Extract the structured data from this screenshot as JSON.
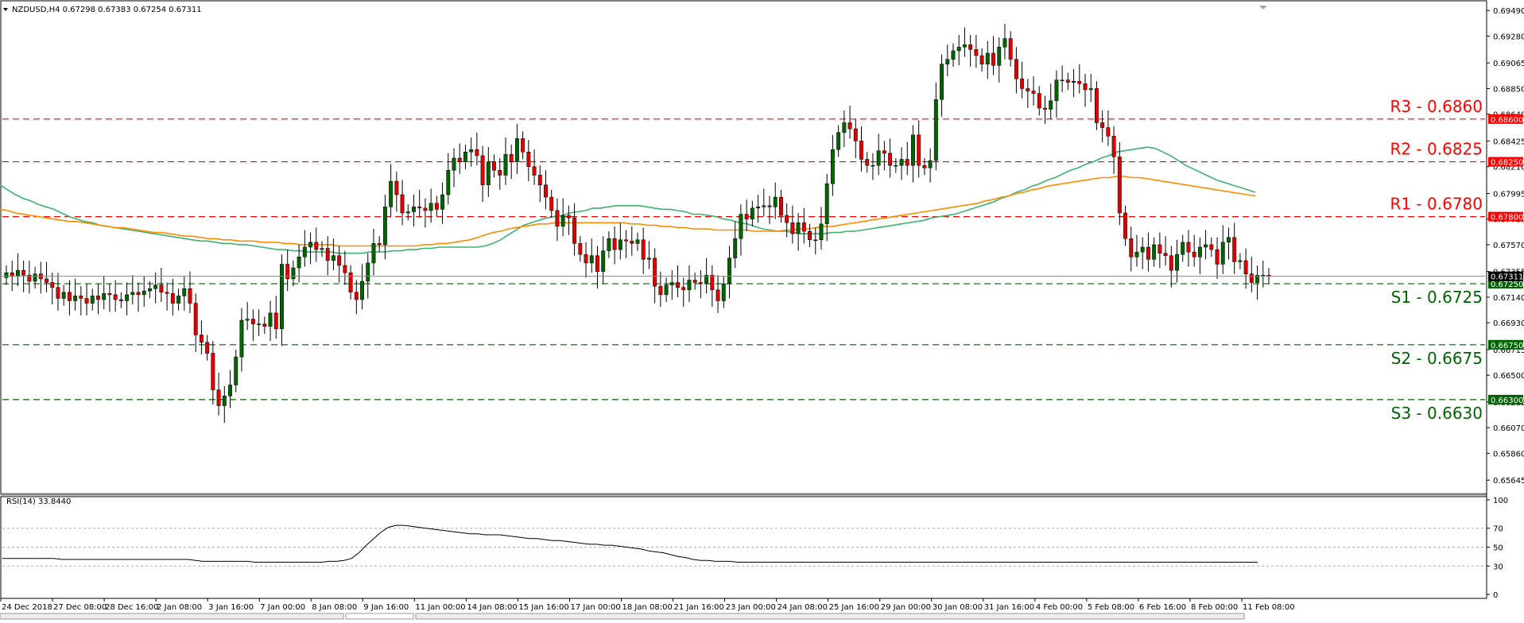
{
  "chart_data": [
    {
      "type": "candlestick",
      "title": "NZDUSD,H4  0.67298 0.67383 0.67254 0.67311",
      "symbol": "NZDUSD",
      "timeframe": "H4",
      "ohlc_label": {
        "open": 0.67298,
        "high": 0.67383,
        "low": 0.67254,
        "close": 0.67311
      },
      "ylim": [
        0.6555,
        0.6955
      ],
      "y_ticks": [
        0.6949,
        0.6928,
        0.6906,
        0.6885,
        0.6864,
        0.6842,
        0.6821,
        0.6799,
        0.6778,
        0.6757,
        0.6735,
        0.6714,
        0.6693,
        0.6671,
        0.665,
        0.6628,
        0.6607,
        0.6586,
        0.6564
      ],
      "y_tick_labels": [
        "0.69490",
        "0.69280",
        "0.69065",
        "0.68850",
        "0.68640",
        "0.68425",
        "0.68210",
        "0.67995",
        "0.67780",
        "0.67570",
        "0.67355",
        "0.67140",
        "0.66930",
        "0.66715",
        "0.66500",
        "0.66285",
        "0.66070",
        "0.65860",
        "0.65645"
      ],
      "x_tick_labels": [
        "24 Dec 2018",
        "27 Dec 08:00",
        "28 Dec 16:00",
        "2 Jan 08:00",
        "3 Jan 16:00",
        "7 Jan 00:00",
        "8 Jan 08:00",
        "9 Jan 16:00",
        "11 Jan 00:00",
        "14 Jan 08:00",
        "15 Jan 16:00",
        "17 Jan 00:00",
        "18 Jan 08:00",
        "21 Jan 16:00",
        "23 Jan 00:00",
        "24 Jan 08:00",
        "25 Jan 16:00",
        "29 Jan 00:00",
        "30 Jan 08:00",
        "31 Jan 16:00",
        "4 Feb 00:00",
        "5 Feb 08:00",
        "6 Feb 16:00",
        "8 Feb 00:00",
        "11 Feb 08:00"
      ],
      "current_price": {
        "value": 0.67311,
        "label": "0.67311"
      },
      "levels": [
        {
          "name": "R3",
          "value": 0.686,
          "text": "R3 - 0.6860",
          "tag": "0.68600",
          "color": "#ff0000"
        },
        {
          "name": "R2",
          "value": 0.6825,
          "text": "R2 - 0.6825",
          "tag": "0.68250",
          "color": "#ff0000"
        },
        {
          "name": "R1",
          "value": 0.678,
          "text": "R1 - 0.6780",
          "tag": "0.67800",
          "color": "#ff0000"
        },
        {
          "name": "S1",
          "value": 0.6725,
          "text": "S1 - 0.6725",
          "tag": "0.67250",
          "color": "#006400"
        },
        {
          "name": "S2",
          "value": 0.6675,
          "text": "S2 - 0.6675",
          "tag": "0.66750",
          "color": "#006400"
        },
        {
          "name": "S3",
          "value": 0.663,
          "text": "S3 - 0.6630",
          "tag": "0.66300",
          "color": "#006400"
        }
      ],
      "candle_closes": [
        0.6734,
        0.6731,
        0.6736,
        0.6732,
        0.6727,
        0.6733,
        0.6729,
        0.6726,
        0.6722,
        0.6713,
        0.6718,
        0.6711,
        0.6715,
        0.6713,
        0.6709,
        0.6715,
        0.6712,
        0.6717,
        0.6716,
        0.6712,
        0.6711,
        0.6716,
        0.6718,
        0.6716,
        0.6719,
        0.6721,
        0.6724,
        0.6718,
        0.6717,
        0.6709,
        0.6715,
        0.6721,
        0.6709,
        0.6683,
        0.6677,
        0.6668,
        0.6638,
        0.6625,
        0.6633,
        0.6642,
        0.6665,
        0.6695,
        0.6696,
        0.6692,
        0.6692,
        0.669,
        0.6701,
        0.6688,
        0.6741,
        0.6729,
        0.6738,
        0.6747,
        0.6755,
        0.6759,
        0.6753,
        0.6754,
        0.6744,
        0.6748,
        0.674,
        0.6734,
        0.6718,
        0.6712,
        0.6727,
        0.6742,
        0.6758,
        0.6757,
        0.6788,
        0.6809,
        0.6798,
        0.6783,
        0.6784,
        0.6788,
        0.6787,
        0.6785,
        0.6791,
        0.6786,
        0.6798,
        0.6818,
        0.6828,
        0.6825,
        0.6833,
        0.6835,
        0.683,
        0.6806,
        0.6825,
        0.6818,
        0.6814,
        0.6831,
        0.6825,
        0.6844,
        0.6833,
        0.6821,
        0.6814,
        0.6806,
        0.6796,
        0.6785,
        0.6772,
        0.6781,
        0.6779,
        0.6758,
        0.6749,
        0.6742,
        0.6748,
        0.6735,
        0.6752,
        0.6762,
        0.6753,
        0.6761,
        0.676,
        0.6758,
        0.6761,
        0.6745,
        0.6746,
        0.6723,
        0.6716,
        0.6724,
        0.6726,
        0.6722,
        0.672,
        0.6728,
        0.6726,
        0.6725,
        0.6732,
        0.672,
        0.6711,
        0.6725,
        0.6746,
        0.6762,
        0.6782,
        0.6778,
        0.6787,
        0.6788,
        0.6789,
        0.6788,
        0.6796,
        0.6781,
        0.6775,
        0.6766,
        0.6775,
        0.6768,
        0.6761,
        0.6761,
        0.6774,
        0.6807,
        0.6835,
        0.6849,
        0.6857,
        0.6852,
        0.6842,
        0.6827,
        0.6822,
        0.6822,
        0.6834,
        0.6832,
        0.6822,
        0.6822,
        0.6827,
        0.6822,
        0.6847,
        0.6822,
        0.682,
        0.6826,
        0.6876,
        0.6905,
        0.6909,
        0.6916,
        0.6919,
        0.6921,
        0.6917,
        0.6912,
        0.6905,
        0.6914,
        0.6904,
        0.6919,
        0.6926,
        0.6909,
        0.6893,
        0.6885,
        0.6883,
        0.6881,
        0.6869,
        0.6868,
        0.6875,
        0.6892,
        0.6892,
        0.689,
        0.6891,
        0.6889,
        0.6884,
        0.6885,
        0.6857,
        0.6853,
        0.6846,
        0.6829,
        0.6783,
        0.6762,
        0.6747,
        0.6751,
        0.6755,
        0.6745,
        0.6757,
        0.675,
        0.6748,
        0.6736,
        0.6749,
        0.6759,
        0.6751,
        0.6747,
        0.6755,
        0.6757,
        0.6753,
        0.6741,
        0.6759,
        0.6763,
        0.6743,
        0.6744,
        0.6733,
        0.6726,
        0.6732,
        0.6732,
        0.6731
      ],
      "series": [
        {
          "name": "",
          "type": "ma",
          "color": "#3cb371",
          "values": [
            0.6806,
            0.6802,
            0.6798,
            0.6795,
            0.6793,
            0.679,
            0.6788,
            0.6786,
            0.6783,
            0.678,
            0.6778,
            0.6776,
            0.6775,
            0.6773,
            0.6772,
            0.6771,
            0.677,
            0.6769,
            0.6768,
            0.6767,
            0.6766,
            0.6765,
            0.6764,
            0.6763,
            0.6762,
            0.6761,
            0.676,
            0.676,
            0.6759,
            0.6758,
            0.6758,
            0.6757,
            0.6757,
            0.6756,
            0.6755,
            0.6754,
            0.6753,
            0.6753,
            0.6752,
            0.6752,
            0.6751,
            0.6751,
            0.6751,
            0.6751,
            0.675,
            0.675,
            0.675,
            0.675,
            0.6751,
            0.6751,
            0.6751,
            0.6752,
            0.6752,
            0.6753,
            0.6753,
            0.6754,
            0.6754,
            0.6755,
            0.6755,
            0.6755,
            0.6755,
            0.6755,
            0.6755,
            0.6756,
            0.6758,
            0.6761,
            0.6765,
            0.6769,
            0.6773,
            0.6775,
            0.6777,
            0.6779,
            0.678,
            0.6781,
            0.6783,
            0.6784,
            0.6785,
            0.6787,
            0.6787,
            0.6788,
            0.6789,
            0.6789,
            0.6789,
            0.6789,
            0.6788,
            0.6787,
            0.6786,
            0.6786,
            0.6785,
            0.6784,
            0.6782,
            0.6782,
            0.6781,
            0.678,
            0.6778,
            0.6777,
            0.6775,
            0.6774,
            0.6772,
            0.677,
            0.6769,
            0.6768,
            0.6768,
            0.6767,
            0.6766,
            0.6766,
            0.6766,
            0.6766,
            0.6767,
            0.6767,
            0.6768,
            0.6768,
            0.6769,
            0.677,
            0.6771,
            0.6772,
            0.6773,
            0.6774,
            0.6775,
            0.6776,
            0.6777,
            0.6779,
            0.678,
            0.6781,
            0.6782,
            0.6784,
            0.6786,
            0.6788,
            0.679,
            0.6792,
            0.6795,
            0.6797,
            0.68,
            0.6802,
            0.6805,
            0.6807,
            0.681,
            0.6812,
            0.6815,
            0.6818,
            0.682,
            0.6823,
            0.6825,
            0.6828,
            0.683,
            0.6833,
            0.6834,
            0.6835,
            0.6836,
            0.6837,
            0.6836,
            0.6833,
            0.683,
            0.6826,
            0.6822,
            0.6819,
            0.6816,
            0.6813,
            0.681,
            0.6808,
            0.6806,
            0.6804,
            0.6802,
            0.68
          ]
        },
        {
          "name": "",
          "type": "ma",
          "color": "#ff8c00",
          "values": [
            0.6786,
            0.6785,
            0.6783,
            0.6782,
            0.6781,
            0.678,
            0.6779,
            0.6778,
            0.6777,
            0.6776,
            0.6776,
            0.6775,
            0.6774,
            0.6773,
            0.6772,
            0.6771,
            0.6771,
            0.677,
            0.6769,
            0.6768,
            0.6767,
            0.6767,
            0.6766,
            0.6765,
            0.6764,
            0.6764,
            0.6763,
            0.6762,
            0.6762,
            0.6761,
            0.6761,
            0.676,
            0.676,
            0.676,
            0.6759,
            0.6759,
            0.6759,
            0.6758,
            0.6758,
            0.6757,
            0.6757,
            0.6757,
            0.6757,
            0.6757,
            0.6756,
            0.6756,
            0.6756,
            0.6756,
            0.6756,
            0.6756,
            0.6756,
            0.6756,
            0.6756,
            0.6756,
            0.6756,
            0.6757,
            0.6757,
            0.6758,
            0.6758,
            0.6759,
            0.676,
            0.6761,
            0.6763,
            0.6765,
            0.6767,
            0.6768,
            0.677,
            0.6771,
            0.6772,
            0.6773,
            0.6774,
            0.6774,
            0.6775,
            0.6775,
            0.6775,
            0.6775,
            0.6775,
            0.6775,
            0.6775,
            0.6775,
            0.6775,
            0.6775,
            0.6774,
            0.6774,
            0.6773,
            0.6773,
            0.6772,
            0.6772,
            0.6771,
            0.6771,
            0.677,
            0.677,
            0.677,
            0.6769,
            0.6769,
            0.6769,
            0.6769,
            0.6769,
            0.6768,
            0.6768,
            0.6768,
            0.6768,
            0.6769,
            0.6769,
            0.677,
            0.677,
            0.6771,
            0.6772,
            0.6772,
            0.6773,
            0.6774,
            0.6775,
            0.6776,
            0.6777,
            0.6778,
            0.6779,
            0.678,
            0.6781,
            0.6782,
            0.6783,
            0.6784,
            0.6785,
            0.6786,
            0.6787,
            0.6788,
            0.6789,
            0.679,
            0.6791,
            0.6793,
            0.6794,
            0.6796,
            0.6797,
            0.6799,
            0.68,
            0.6802,
            0.6803,
            0.6805,
            0.6806,
            0.6807,
            0.6808,
            0.6809,
            0.681,
            0.6811,
            0.6812,
            0.6812,
            0.6813,
            0.6813,
            0.6812,
            0.6812,
            0.6811,
            0.681,
            0.6809,
            0.6808,
            0.6807,
            0.6806,
            0.6805,
            0.6804,
            0.6803,
            0.6802,
            0.6801,
            0.68,
            0.6799,
            0.6798,
            0.6797
          ]
        }
      ]
    },
    {
      "type": "line",
      "title": "RSI(14) 33.8440",
      "indicator": "RSI(14)",
      "last_value": 33.844,
      "ylim": [
        0,
        100
      ],
      "y_ticks": [
        100,
        70,
        50,
        30,
        0
      ],
      "y_tick_labels": [
        "100",
        "70",
        "50",
        "30",
        "0"
      ],
      "levels": [
        70,
        50,
        30
      ],
      "series": [
        {
          "name": "",
          "values": [
            38,
            38,
            38,
            38,
            38,
            38,
            38,
            38,
            37,
            37,
            37,
            37,
            37,
            37,
            37,
            37,
            37,
            37,
            37,
            37,
            37,
            37,
            37,
            37,
            37,
            37,
            36,
            35,
            35,
            35,
            35,
            35,
            35,
            35,
            34,
            34,
            34,
            34,
            34,
            34,
            34,
            34,
            34,
            34,
            35,
            35,
            36,
            38,
            44,
            52,
            59,
            66,
            71,
            73,
            73,
            72,
            71,
            70,
            69,
            68,
            67,
            66,
            65,
            64,
            64,
            63,
            63,
            63,
            62,
            61,
            60,
            59,
            59,
            58,
            57,
            57,
            56,
            55,
            54,
            53,
            53,
            52,
            52,
            51,
            50,
            49,
            48,
            46,
            45,
            44,
            42,
            40,
            39,
            37,
            36,
            36,
            35,
            35,
            35,
            34,
            34,
            34,
            34,
            34,
            34,
            34,
            34,
            34,
            34,
            34,
            34,
            34,
            34,
            34,
            34,
            34,
            34,
            34,
            34,
            34,
            34,
            34,
            34,
            34,
            34,
            34,
            34,
            34,
            34,
            34,
            34,
            34,
            34,
            34,
            34,
            34,
            34,
            34,
            34,
            34,
            34,
            34,
            34,
            34,
            34,
            34,
            34,
            34,
            34,
            34,
            34,
            34,
            34,
            34,
            34,
            34,
            34,
            34,
            34,
            34,
            34,
            34,
            34,
            34,
            34,
            34,
            34,
            34,
            34,
            34
          ]
        }
      ]
    }
  ]
}
